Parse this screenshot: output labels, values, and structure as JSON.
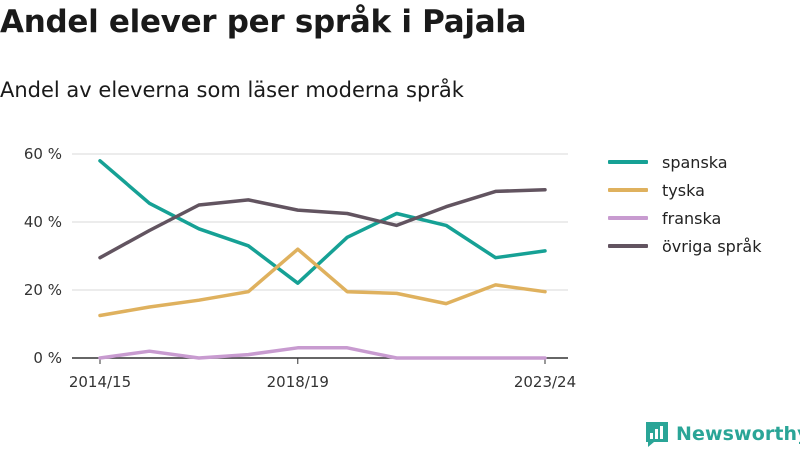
{
  "title": "Andel elever per språk i Pajala",
  "subtitle": "Andel av eleverna som läser moderna språk",
  "brand": {
    "name": "Newsworthy",
    "icon": "newsworthy-logo-icon",
    "color": "#2aa597"
  },
  "chart_data": {
    "type": "line",
    "x": [
      "2014/15",
      "2015/16",
      "2016/17",
      "2017/18",
      "2018/19",
      "2019/20",
      "2020/21",
      "2021/22",
      "2022/23",
      "2023/24"
    ],
    "x_tick_labels": [
      "2014/15",
      "2018/19",
      "2023/24"
    ],
    "y_ticks": [
      0,
      20,
      40,
      60
    ],
    "y_tick_labels": [
      "0 %",
      "20 %",
      "40 %",
      "60 %"
    ],
    "ylim": [
      0,
      60
    ],
    "grid": true,
    "legend_position": "right",
    "series": [
      {
        "name": "spanska",
        "color": "#16a195",
        "values": [
          58,
          45.5,
          38,
          33,
          22,
          35.5,
          42.5,
          39,
          29.5,
          31.5
        ]
      },
      {
        "name": "tyska",
        "color": "#dfb15e",
        "values": [
          12.5,
          15,
          17,
          19.5,
          32,
          19.5,
          19,
          16,
          21.5,
          19.5
        ]
      },
      {
        "name": "franska",
        "color": "#c89bd0",
        "values": [
          0,
          2,
          0,
          1,
          3,
          3,
          0,
          0,
          0,
          0
        ]
      },
      {
        "name": "övriga språk",
        "color": "#625460",
        "values": [
          29.5,
          37.5,
          45,
          46.5,
          43.5,
          42.5,
          39,
          44.5,
          49,
          49.5
        ]
      }
    ]
  }
}
